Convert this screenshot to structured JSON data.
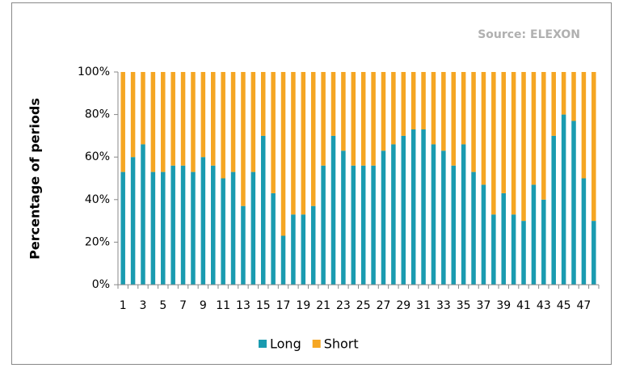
{
  "chart_data": {
    "type": "stacked_bar",
    "annotation": "Source: ELEXON",
    "y_label": "Percentage of periods",
    "categories": [
      "1",
      null,
      "3",
      null,
      "5",
      null,
      "7",
      null,
      "9",
      null,
      "11",
      null,
      "13",
      null,
      "15",
      null,
      "17",
      null,
      "19",
      null,
      "21",
      null,
      "23",
      null,
      "25",
      null,
      "27",
      null,
      "29",
      null,
      "31",
      null,
      "33",
      null,
      "35",
      null,
      "37",
      null,
      "39",
      null,
      "41",
      null,
      "43",
      null,
      "45",
      null,
      "47",
      null
    ],
    "series": [
      {
        "name": "Long",
        "color": "#1a9bb0",
        "values": [
          53,
          60,
          66,
          53,
          53,
          56,
          56,
          53,
          60,
          56,
          50,
          53,
          37,
          53,
          70,
          43,
          23,
          33,
          33,
          37,
          56,
          70,
          63,
          56,
          56,
          56,
          63,
          66,
          70,
          73,
          73,
          66,
          63,
          56,
          66,
          53,
          47,
          33,
          43,
          33,
          30,
          47,
          40,
          70,
          80,
          77,
          50,
          30
        ]
      },
      {
        "name": "Short",
        "color": "#f5a623",
        "values": [
          47,
          40,
          34,
          47,
          47,
          44,
          44,
          47,
          40,
          44,
          50,
          47,
          63,
          47,
          30,
          57,
          77,
          67,
          67,
          63,
          44,
          30,
          37,
          44,
          44,
          44,
          37,
          34,
          30,
          27,
          27,
          34,
          37,
          44,
          34,
          47,
          53,
          67,
          57,
          67,
          70,
          53,
          60,
          30,
          20,
          23,
          50,
          70
        ]
      }
    ],
    "ylim": [
      0,
      100
    ],
    "yticks": [
      {
        "value": 0,
        "label": "0%"
      },
      {
        "value": 20,
        "label": "20%"
      },
      {
        "value": 40,
        "label": "40%"
      },
      {
        "value": 60,
        "label": "60%"
      },
      {
        "value": 80,
        "label": "80%"
      },
      {
        "value": 100,
        "label": "100%"
      }
    ],
    "legend": "bottom"
  }
}
